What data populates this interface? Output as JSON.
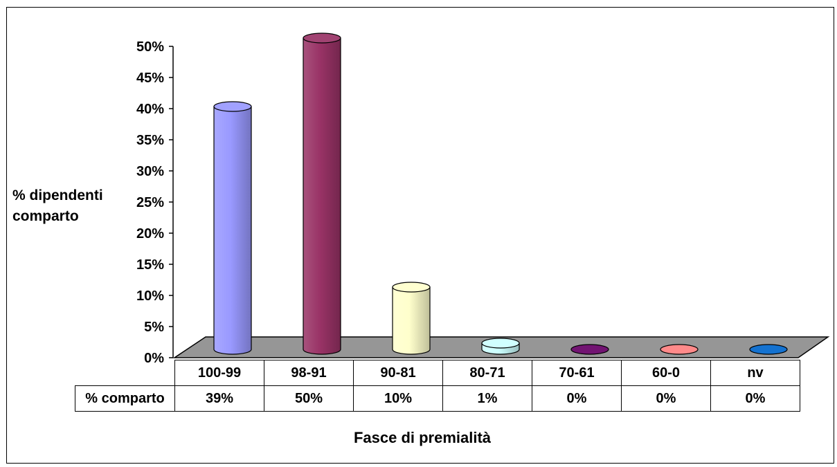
{
  "chart_data": {
    "type": "bar",
    "categories": [
      "100-99",
      "98-91",
      "90-81",
      "80-71",
      "70-61",
      "60-0",
      "nv"
    ],
    "values": [
      39,
      50,
      10,
      1,
      0,
      0,
      0
    ],
    "ylabel": "% dipendenti comparto",
    "xlabel": "Fasce di premialità",
    "ylim": [
      0,
      50
    ],
    "yticks": [
      "0%",
      "5%",
      "10%",
      "15%",
      "20%",
      "25%",
      "30%",
      "35%",
      "40%",
      "45%",
      "50%"
    ],
    "table": {
      "row_label": "% comparto",
      "values": [
        "39%",
        "50%",
        "10%",
        "1%",
        "0%",
        "0%",
        "0%"
      ]
    },
    "bar_colors": [
      "#9999ff",
      "#993366",
      "#ffffcc",
      "#ccffff",
      "#660066",
      "#ff8080",
      "#0066cc"
    ],
    "floor_color": "#969696",
    "grid": false,
    "legend": "none"
  }
}
